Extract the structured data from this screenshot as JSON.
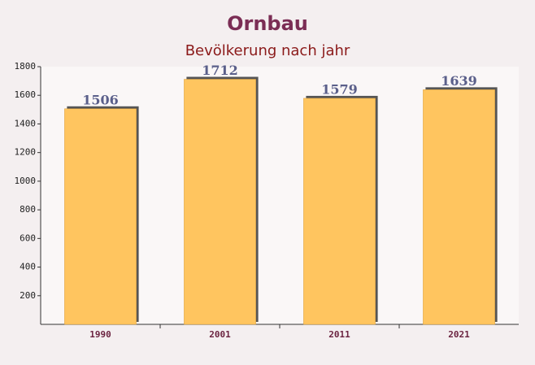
{
  "chart_data": {
    "type": "bar",
    "title": "Ornbau",
    "subtitle": "Bevölkerung nach jahr",
    "categories": [
      "1990",
      "2001",
      "2011",
      "2021"
    ],
    "values": [
      1506,
      1712,
      1579,
      1639
    ],
    "color": "#ffc55f",
    "ylim": [
      0,
      1800
    ],
    "yticks": [
      200,
      400,
      600,
      800,
      1000,
      1200,
      1400,
      1600,
      1800
    ],
    "grid": false
  }
}
